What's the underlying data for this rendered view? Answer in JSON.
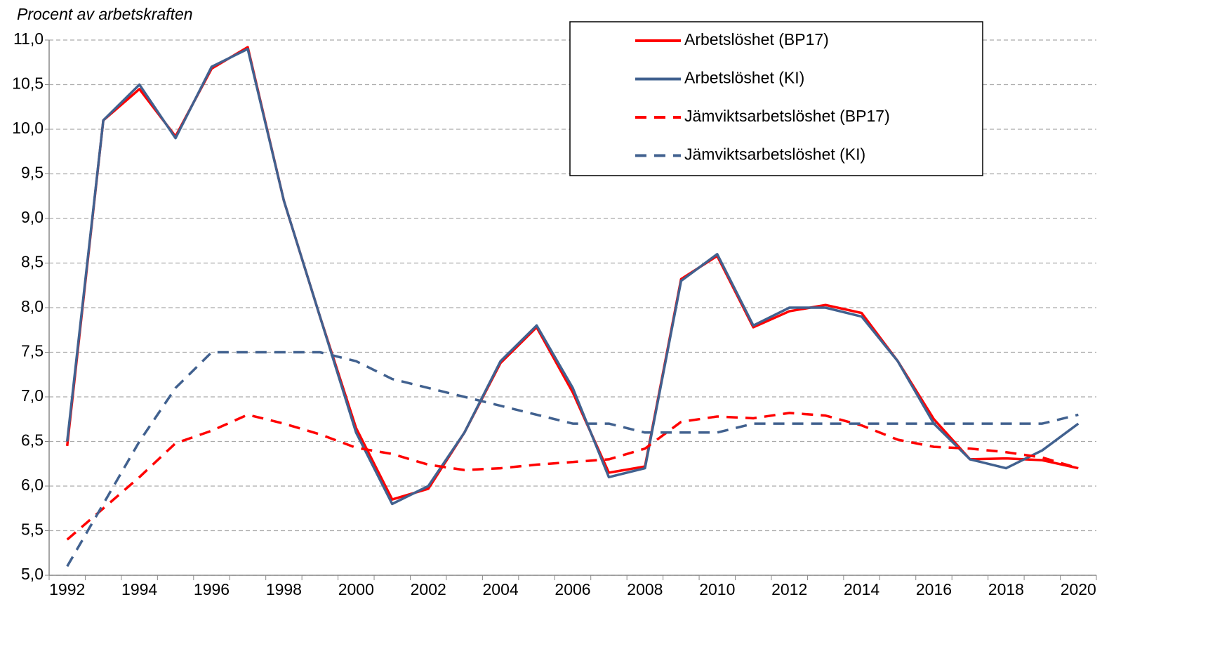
{
  "chart_data": {
    "type": "line",
    "y_label": "Procent av arbetskraften",
    "categories": [
      "1992",
      null,
      "1994",
      null,
      "1996",
      null,
      "1998",
      null,
      "2000",
      null,
      "2002",
      null,
      "2004",
      null,
      "2006",
      null,
      "2008",
      null,
      "2010",
      null,
      "2012",
      null,
      "2014",
      null,
      "2016",
      null,
      "2018",
      null,
      "2020"
    ],
    "series": [
      {
        "name": "Arbetslöshet (BP17)",
        "color": "#ff0000",
        "line_style": "solid",
        "values": [
          6.45,
          10.1,
          10.45,
          9.92,
          10.68,
          10.92,
          9.2,
          7.9,
          6.65,
          5.85,
          5.97,
          6.6,
          7.38,
          7.78,
          7.05,
          6.15,
          6.22,
          8.32,
          8.58,
          7.78,
          7.96,
          8.03,
          7.94,
          7.4,
          6.75,
          6.3,
          6.31,
          6.29,
          6.2
        ]
      },
      {
        "name": "Arbetslöshet (KI)",
        "color": "#41618f",
        "line_style": "solid",
        "values": [
          6.5,
          10.1,
          10.5,
          9.9,
          10.7,
          10.9,
          9.2,
          7.9,
          6.6,
          5.8,
          6.0,
          6.6,
          7.4,
          7.8,
          7.1,
          6.1,
          6.2,
          8.3,
          8.6,
          7.8,
          8.0,
          8.0,
          7.9,
          7.4,
          6.7,
          6.3,
          6.2,
          6.4,
          6.7
        ]
      },
      {
        "name": "Jämviktsarbetslöshet (BP17)",
        "color": "#ff0000",
        "line_style": "dashed",
        "values": [
          5.4,
          5.75,
          6.1,
          6.48,
          6.62,
          6.8,
          6.7,
          6.58,
          6.43,
          6.36,
          6.24,
          6.18,
          6.2,
          6.24,
          6.27,
          6.3,
          6.42,
          6.72,
          6.78,
          6.76,
          6.82,
          6.79,
          6.68,
          6.52,
          6.44,
          6.42,
          6.38,
          6.32,
          6.2
        ]
      },
      {
        "name": "Jämviktsarbetslöshet (KI)",
        "color": "#41618f",
        "line_style": "dashed",
        "values": [
          5.1,
          5.8,
          6.5,
          7.1,
          7.5,
          7.5,
          7.5,
          7.5,
          7.4,
          7.2,
          7.1,
          7.0,
          6.9,
          6.8,
          6.7,
          6.7,
          6.6,
          6.6,
          6.6,
          6.7,
          6.7,
          6.7,
          6.7,
          6.7,
          6.7,
          6.7,
          6.7,
          6.7,
          6.8
        ]
      }
    ],
    "ylim": [
      5,
      11
    ],
    "yticks": [
      {
        "value": 5,
        "label": "5,0"
      },
      {
        "value": 5.5,
        "label": "5,5"
      },
      {
        "value": 6,
        "label": "6,0"
      },
      {
        "value": 6.5,
        "label": "6,5"
      },
      {
        "value": 7,
        "label": "7,0"
      },
      {
        "value": 7.5,
        "label": "7,5"
      },
      {
        "value": 8,
        "label": "8,0"
      },
      {
        "value": 8.5,
        "label": "8,5"
      },
      {
        "value": 9,
        "label": "9,0"
      },
      {
        "value": 9.5,
        "label": "9,5"
      },
      {
        "value": 10,
        "label": "10,0"
      },
      {
        "value": 10.5,
        "label": "10,5"
      },
      {
        "value": 11,
        "label": "11,0"
      }
    ],
    "grid": true,
    "legend": "top-right"
  }
}
